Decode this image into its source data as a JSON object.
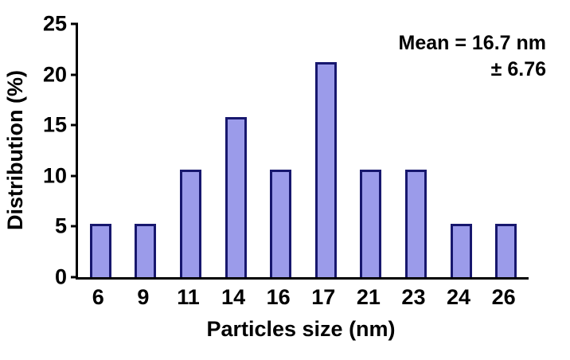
{
  "chart_data": {
    "type": "bar",
    "title": "",
    "categories": [
      "6",
      "9",
      "11",
      "14",
      "16",
      "17",
      "21",
      "23",
      "24",
      "26"
    ],
    "values": [
      5.3,
      5.3,
      10.6,
      15.8,
      10.6,
      21.2,
      10.6,
      10.6,
      5.3,
      5.3
    ],
    "xlabel": "Particles size (nm)",
    "ylabel": "Distribution (%)",
    "ylim": [
      0,
      25
    ],
    "yticks": [
      0,
      5,
      10,
      15,
      20,
      25
    ],
    "grid": false,
    "legend": false,
    "annotation": {
      "line1": "Mean = 16.7 nm",
      "line2": "± 6.76"
    },
    "colors": {
      "bar_fill": "#9b9bea",
      "bar_border": "#17176e",
      "axis": "#000000",
      "text": "#000000"
    }
  }
}
